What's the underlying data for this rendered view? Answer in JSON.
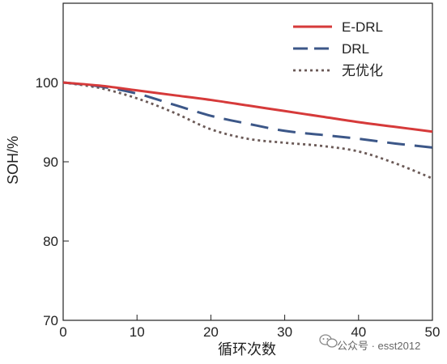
{
  "chart_data": {
    "type": "line",
    "title": "",
    "xlabel": "循环次数",
    "ylabel": "SOH/%",
    "xlim": [
      0,
      50
    ],
    "ylim": [
      70,
      110
    ],
    "xticks": [
      "0",
      "10",
      "20",
      "30",
      "40",
      "50"
    ],
    "yticks": [
      "70",
      "80",
      "90",
      "100"
    ],
    "grid": false,
    "legend_position": "top-right",
    "series": [
      {
        "name": "E-DRL",
        "style": "solid",
        "color": "#d63a3a",
        "x": [
          0,
          5,
          10,
          15,
          20,
          25,
          30,
          35,
          40,
          45,
          50
        ],
        "y": [
          100,
          99.6,
          99.0,
          98.4,
          97.8,
          97.1,
          96.4,
          95.7,
          95.0,
          94.4,
          93.8
        ]
      },
      {
        "name": "DRL",
        "style": "dashed",
        "color": "#3c5788",
        "x": [
          0,
          5,
          10,
          15,
          20,
          25,
          30,
          35,
          40,
          45,
          50
        ],
        "y": [
          100,
          99.5,
          98.6,
          97.2,
          95.8,
          94.8,
          93.9,
          93.4,
          92.9,
          92.3,
          91.8
        ]
      },
      {
        "name": "无优化",
        "style": "dotted",
        "color": "#6b5a57",
        "x": [
          0,
          5,
          10,
          15,
          20,
          25,
          30,
          35,
          40,
          45,
          50
        ],
        "y": [
          100,
          99.3,
          98.0,
          96.2,
          94.1,
          92.9,
          92.4,
          92.0,
          91.3,
          89.8,
          87.9
        ]
      }
    ]
  },
  "watermark": {
    "text": "公众号 · esst2012",
    "icon": "wechat-icon"
  }
}
